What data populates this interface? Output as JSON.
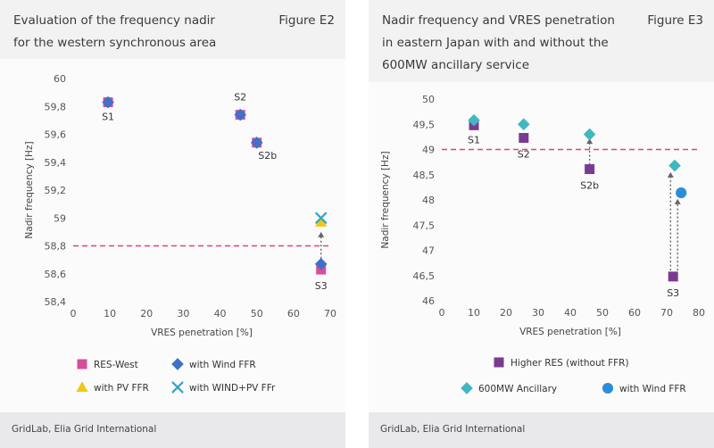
{
  "chart_data": [
    {
      "type": "scatter",
      "title": "Evaluation of the frequency nadir for the western synchronous area",
      "title_lines": [
        "Evaluation of the frequency nadir",
        "for the western synchronous area"
      ],
      "figure": "Figure E2",
      "xlabel": "VRES penetration [%]",
      "ylabel": "Nadir frequency [Hz]",
      "xlim": [
        0,
        70
      ],
      "ylim": [
        58.4,
        60
      ],
      "xticks": [
        "0",
        "10",
        "20",
        "30",
        "40",
        "50",
        "60",
        "70"
      ],
      "yticks": [
        "58,4",
        "58,6",
        "58,8",
        "59",
        "59,2",
        "59,4",
        "59,6",
        "59,8",
        "60"
      ],
      "threshold": 58.8,
      "series": [
        {
          "name": "RES-West",
          "marker": "square",
          "color": "#d64d9a",
          "points": [
            {
              "x": 9.5,
              "y": 59.83
            },
            {
              "x": 45.5,
              "y": 59.74
            },
            {
              "x": 50,
              "y": 59.54
            },
            {
              "x": 67.5,
              "y": 58.63
            }
          ]
        },
        {
          "name": "with Wind FFR",
          "marker": "diamond",
          "color": "#3f71c6",
          "points": [
            {
              "x": 9.5,
              "y": 59.83
            },
            {
              "x": 45.5,
              "y": 59.74
            },
            {
              "x": 50,
              "y": 59.54
            },
            {
              "x": 67.5,
              "y": 58.67
            }
          ]
        },
        {
          "name": "with PV FFR",
          "marker": "triangle",
          "color": "#f3c613",
          "points": [
            {
              "x": 67.5,
              "y": 58.97
            }
          ]
        },
        {
          "name": "with WIND+PV FFr",
          "marker": "x",
          "color": "#2fa7c4",
          "points": [
            {
              "x": 67.5,
              "y": 59.0
            }
          ]
        }
      ],
      "annotations": [
        {
          "text": "S1",
          "x": 9.5,
          "y": 59.83
        },
        {
          "text": "S2",
          "x": 45.5,
          "y": 59.74
        },
        {
          "text": "S2b",
          "x": 50,
          "y": 59.54
        },
        {
          "text": "S3",
          "x": 67.5,
          "y": 58.63
        }
      ],
      "source": "GridLab, Elia Grid International"
    },
    {
      "type": "scatter",
      "title": "Nadir frequency and VRES penetration in eastern Japan with and without the 600MW ancillary service",
      "title_lines": [
        "Nadir frequency and VRES penetration",
        "in eastern Japan with and without the",
        "600MW ancillary service"
      ],
      "figure": "Figure E3",
      "xlabel": "VRES penetration [%]",
      "ylabel": "Nadir frequency [Hz]",
      "xlim": [
        0,
        80
      ],
      "ylim": [
        46,
        50
      ],
      "xticks": [
        "0",
        "10",
        "20",
        "30",
        "40",
        "50",
        "60",
        "70",
        "80"
      ],
      "yticks": [
        "46",
        "46,5",
        "47",
        "47,5",
        "48",
        "48,5",
        "49",
        "49,5",
        "50"
      ],
      "threshold": 49,
      "series": [
        {
          "name": "Higher RES (without FFR)",
          "marker": "square",
          "color": "#7b3a91",
          "points": [
            {
              "x": 10,
              "y": 49.48
            },
            {
              "x": 25.5,
              "y": 49.23
            },
            {
              "x": 46,
              "y": 48.61
            },
            {
              "x": 72,
              "y": 46.48
            }
          ]
        },
        {
          "name": "600MW Ancillary",
          "marker": "diamond",
          "color": "#3fb8c0",
          "points": [
            {
              "x": 10,
              "y": 49.58
            },
            {
              "x": 25.5,
              "y": 49.5
            },
            {
              "x": 46,
              "y": 49.3
            },
            {
              "x": 72.5,
              "y": 48.68
            }
          ]
        },
        {
          "name": "with Wind FFR",
          "marker": "circle",
          "color": "#2a8fd6",
          "points": [
            {
              "x": 74.5,
              "y": 48.14
            }
          ]
        }
      ],
      "annotations": [
        {
          "text": "S1",
          "x": 10,
          "y": 49.48
        },
        {
          "text": "S2",
          "x": 25.5,
          "y": 49.23
        },
        {
          "text": "S2b",
          "x": 46,
          "y": 48.61
        },
        {
          "text": "S3",
          "x": 72,
          "y": 46.48
        }
      ],
      "source": "GridLab, Elia Grid International"
    }
  ]
}
